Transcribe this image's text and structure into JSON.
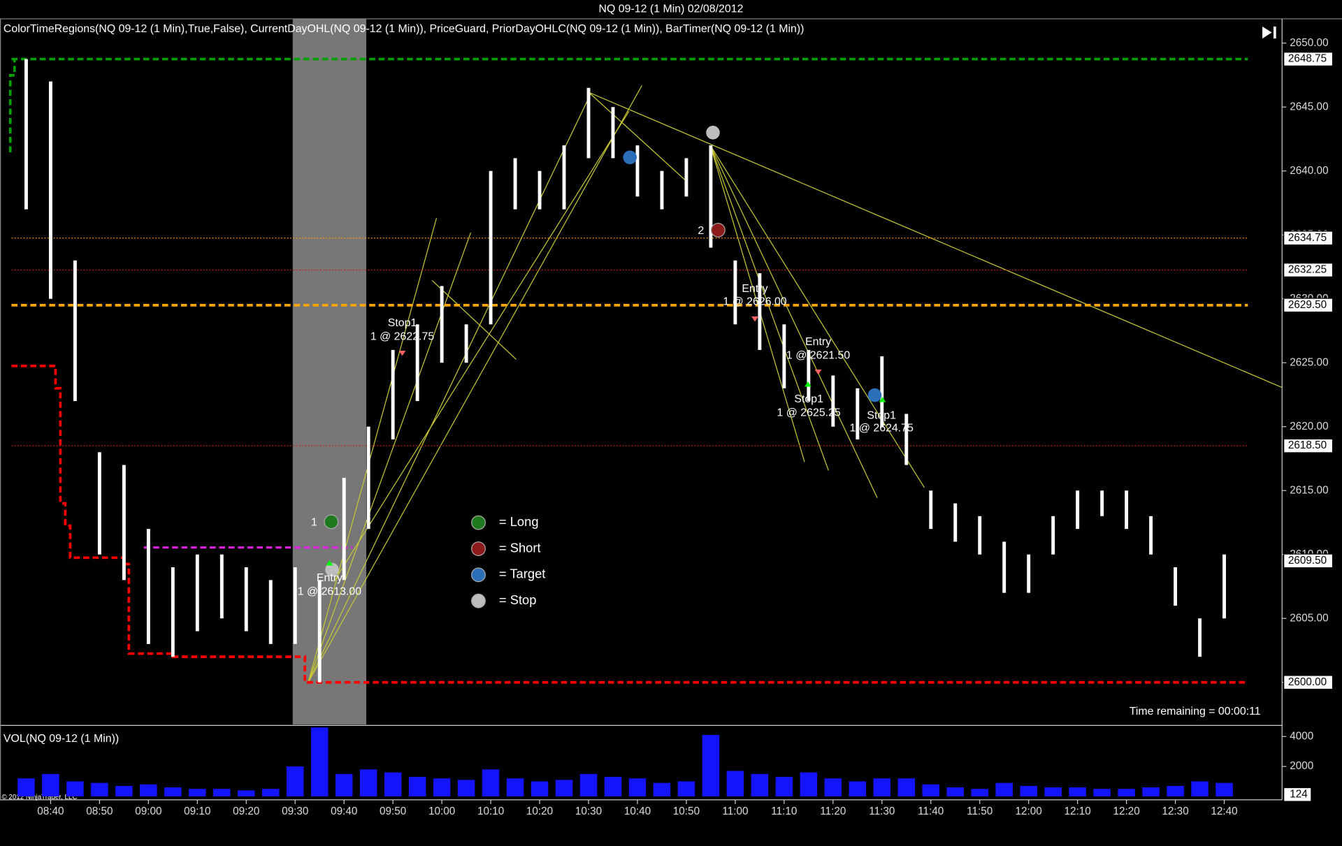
{
  "header": {
    "title": "NQ 09-12 (1 Min)  02/08/2012"
  },
  "chart_data": [
    {
      "type": "ohlc",
      "title": "ColorTimeRegions(NQ 09-12 (1 Min),True,False), CurrentDayOHL(NQ 09-12 (1 Min)), PriceGuard, PriorDayOHLC(NQ 09-12 (1 Min)), BarTimer(NQ 09-12 (1 Min))",
      "x": [
        "08:35",
        "08:40",
        "08:45",
        "08:50",
        "08:55",
        "09:00",
        "09:05",
        "09:10",
        "09:15",
        "09:20",
        "09:25",
        "09:30",
        "09:35",
        "09:40",
        "09:45",
        "09:50",
        "09:55",
        "10:00",
        "10:05",
        "10:10",
        "10:15",
        "10:20",
        "10:25",
        "10:30",
        "10:35",
        "10:40",
        "10:45",
        "10:50",
        "10:55",
        "11:00",
        "11:05",
        "11:10",
        "11:15",
        "11:20",
        "11:25",
        "11:30",
        "11:35",
        "11:40",
        "11:45",
        "11:50",
        "11:55",
        "12:00",
        "12:05",
        "12:10",
        "12:15",
        "12:20",
        "12:25",
        "12:30",
        "12:35",
        "12:40"
      ],
      "high": [
        2648.75,
        2647,
        2633,
        2618,
        2617,
        2612,
        2609,
        2610,
        2610,
        2609,
        2608,
        2609,
        2608,
        2616,
        2620,
        2626,
        2628,
        2631,
        2628,
        2640,
        2641,
        2640,
        2642,
        2646.5,
        2645,
        2642,
        2640,
        2641,
        2642,
        2633,
        2632,
        2628,
        2626,
        2624,
        2623,
        2625.5,
        2621,
        2615,
        2614,
        2613,
        2611,
        2610,
        2613,
        2615,
        2615,
        2615,
        2613,
        2609,
        2605,
        2610
      ],
      "low": [
        2637,
        2630,
        2622,
        2610,
        2608,
        2603,
        2602,
        2604,
        2605,
        2604,
        2603,
        2603,
        2600,
        2608,
        2612,
        2619,
        2622,
        2625,
        2625,
        2628,
        2637,
        2637,
        2637,
        2641,
        2641,
        2638,
        2637,
        2638,
        2634,
        2628,
        2626,
        2623,
        2622,
        2620,
        2619,
        2620,
        2617,
        2612,
        2611,
        2610,
        2607,
        2607,
        2610,
        2612,
        2613,
        2612,
        2610,
        2606,
        2602,
        2605
      ],
      "bar_color": "#ffffff",
      "xlim": [
        "08:30",
        "12:52"
      ],
      "xticks": [
        "08:40",
        "08:50",
        "09:00",
        "09:10",
        "09:20",
        "09:30",
        "09:40",
        "09:50",
        "10:00",
        "10:10",
        "10:20",
        "10:30",
        "10:40",
        "10:50",
        "11:00",
        "11:10",
        "11:20",
        "11:30",
        "11:40",
        "11:50",
        "12:00",
        "12:10",
        "12:20",
        "12:30",
        "12:40"
      ],
      "ylim": [
        2596.7,
        2651.9
      ],
      "yticks": [
        {
          "value": 2600,
          "label": "2600.00"
        },
        {
          "value": 2605,
          "label": "2605.00"
        },
        {
          "value": 2610,
          "label": "2610.00"
        },
        {
          "value": 2615,
          "label": "2615.00"
        },
        {
          "value": 2620,
          "label": "2620.00"
        },
        {
          "value": 2625,
          "label": "2625.00"
        },
        {
          "value": 2630,
          "label": "2630.00"
        },
        {
          "value": 2635,
          "label": "2635.00"
        },
        {
          "value": 2640,
          "label": "2640.00"
        },
        {
          "value": 2645,
          "label": "2645.00"
        },
        {
          "value": 2650,
          "label": "2650.00"
        }
      ],
      "levels": [
        {
          "value": 2648.75,
          "label": "2648.75",
          "color": "#00a000",
          "style": "dashed"
        },
        {
          "value": 2634.75,
          "label": "2634.75",
          "color": "#ff9900",
          "style": "dotted"
        },
        {
          "value": 2632.25,
          "label": "2632.25",
          "color": "#cc2200",
          "style": "dotted"
        },
        {
          "value": 2629.5,
          "label": "2629.50",
          "color": "#ffa500",
          "style": "dashed"
        },
        {
          "value": 2618.5,
          "label": "2618.50",
          "color": "#cc2200",
          "style": "dotted"
        },
        {
          "value": 2609.5,
          "label": "2609.50",
          "color": "#ffffff",
          "style": "none"
        },
        {
          "value": 2600,
          "label": "2600.00",
          "color": "#ff0000",
          "style": "none"
        }
      ],
      "current_day_low": {
        "color": "#ff0000",
        "x": [
          "08:32",
          "08:41",
          "08:42",
          "08:43",
          "08:44",
          "08:55",
          "08:56",
          "09:05",
          "09:32"
        ],
        "values": [
          2624.75,
          2623,
          2614,
          2612.25,
          2609.75,
          2609.25,
          2602.25,
          2602,
          2600
        ]
      },
      "legend": [
        {
          "label": "= Long",
          "color": "#1f7a1f"
        },
        {
          "label": "= Short",
          "color": "#8b1a1a"
        },
        {
          "label": "= Target",
          "color": "#2a6fb8"
        },
        {
          "label": "= Stop",
          "color": "#bdbdbd"
        }
      ],
      "annotations": [
        "1",
        "2",
        "Entry",
        "1 @ 2613.00",
        "Stop1",
        "1 @ 2622.75",
        "Entry",
        "1 @ 2626.00",
        "Entry",
        "1 @ 2621.50",
        "Stop1",
        "1 @ 2625.25",
        "Stop1",
        "1 @ 2624.75"
      ],
      "time_remaining": "Time remaining = 00:00:11"
    },
    {
      "type": "bar",
      "title": "VOL(NQ 09-12 (1 Min))",
      "x": [
        "08:35",
        "08:40",
        "08:45",
        "08:50",
        "08:55",
        "09:00",
        "09:05",
        "09:10",
        "09:15",
        "09:20",
        "09:25",
        "09:30",
        "09:35",
        "09:40",
        "09:45",
        "09:50",
        "09:55",
        "10:00",
        "10:05",
        "10:10",
        "10:15",
        "10:20",
        "10:25",
        "10:30",
        "10:35",
        "10:40",
        "10:45",
        "10:50",
        "10:55",
        "11:00",
        "11:05",
        "11:10",
        "11:15",
        "11:20",
        "11:25",
        "11:30",
        "11:35",
        "11:40",
        "11:45",
        "11:50",
        "11:55",
        "12:00",
        "12:05",
        "12:10",
        "12:15",
        "12:20",
        "12:25",
        "12:30",
        "12:35",
        "12:40"
      ],
      "values": [
        1200,
        1500,
        1000,
        900,
        700,
        800,
        600,
        500,
        500,
        400,
        500,
        2000,
        4600,
        1500,
        1800,
        1600,
        1300,
        1200,
        1100,
        1800,
        1200,
        1000,
        1100,
        1500,
        1300,
        1200,
        900,
        1000,
        4100,
        1700,
        1500,
        1300,
        1600,
        1200,
        1000,
        1200,
        1200,
        800,
        600,
        500,
        900,
        700,
        600,
        600,
        500,
        500,
        600,
        700,
        1000,
        900
      ],
      "color": "#1414ff",
      "ylim": [
        0,
        4571
      ],
      "yticks": [
        2000,
        4000
      ],
      "last_value": 124
    }
  ],
  "copyright": "© 2012 NinjaTrader, LLC"
}
